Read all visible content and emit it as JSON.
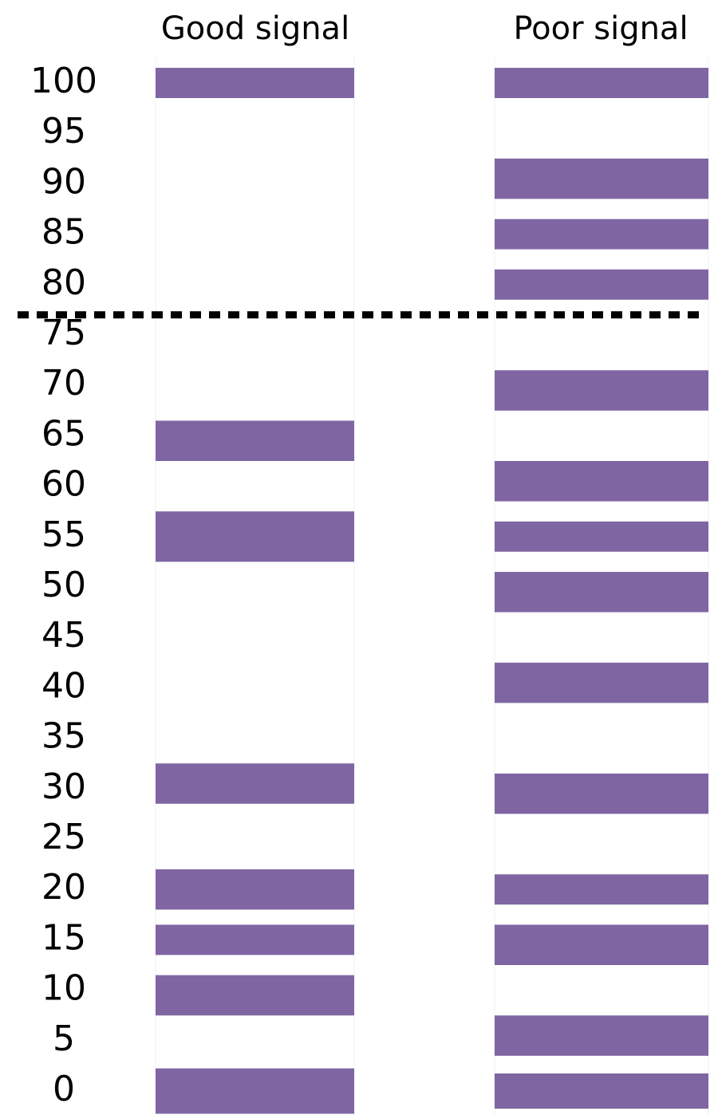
{
  "chart_data": {
    "type": "gel",
    "ylim": [
      0,
      100
    ],
    "yticks": [
      100,
      95,
      90,
      85,
      80,
      75,
      70,
      65,
      60,
      55,
      50,
      45,
      40,
      35,
      30,
      25,
      20,
      15,
      10,
      5,
      0
    ],
    "threshold": 77,
    "series": [
      {
        "name": "Good signal",
        "color": "#7f66a3",
        "values": [
          100,
          64.5,
          55,
          30.5,
          20,
          15,
          9.5,
          0
        ],
        "sizes": [
          3,
          4,
          5,
          4,
          4,
          3,
          4,
          4.5
        ]
      },
      {
        "name": "Poor signal",
        "color": "#7f66a3",
        "values": [
          100,
          90.5,
          85,
          80,
          69.5,
          60.5,
          55,
          49.5,
          40.5,
          29.5,
          20,
          14.5,
          5.5,
          0
        ],
        "sizes": [
          3,
          4,
          3,
          3,
          4,
          4,
          3,
          4,
          4,
          4,
          3,
          4,
          4,
          3.5
        ]
      }
    ]
  }
}
